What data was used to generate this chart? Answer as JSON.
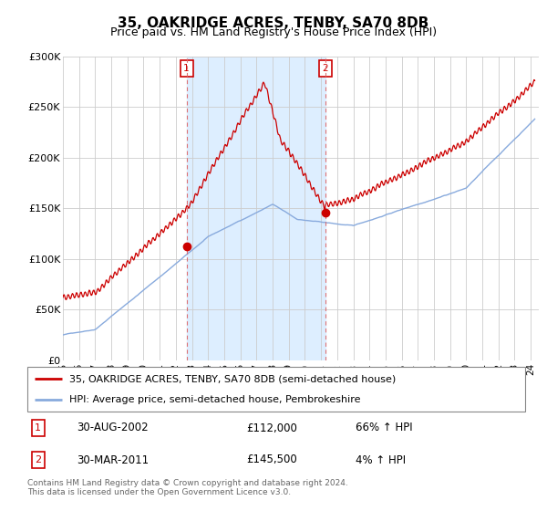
{
  "title": "35, OAKRIDGE ACRES, TENBY, SA70 8DB",
  "subtitle": "Price paid vs. HM Land Registry's House Price Index (HPI)",
  "red_line_color": "#cc0000",
  "blue_line_color": "#88aadd",
  "vline_color": "#dd6666",
  "background_color": "#ffffff",
  "shade_color": "#ddeeff",
  "ylim": [
    0,
    300000
  ],
  "yticks": [
    0,
    50000,
    100000,
    150000,
    200000,
    250000,
    300000
  ],
  "ytick_labels": [
    "£0",
    "£50K",
    "£100K",
    "£150K",
    "£200K",
    "£250K",
    "£300K"
  ],
  "sale1_x": 2002.66,
  "sale1_price": 112000,
  "sale1_label": "30-AUG-2002",
  "sale1_pct": "66% ↑ HPI",
  "sale2_x": 2011.25,
  "sale2_price": 145500,
  "sale2_label": "30-MAR-2011",
  "sale2_pct": "4% ↑ HPI",
  "legend_line1": "35, OAKRIDGE ACRES, TENBY, SA70 8DB (semi-detached house)",
  "legend_line2": "HPI: Average price, semi-detached house, Pembrokeshire",
  "footer": "Contains HM Land Registry data © Crown copyright and database right 2024.\nThis data is licensed under the Open Government Licence v3.0.",
  "xmin": 1995.0,
  "xmax": 2024.5
}
